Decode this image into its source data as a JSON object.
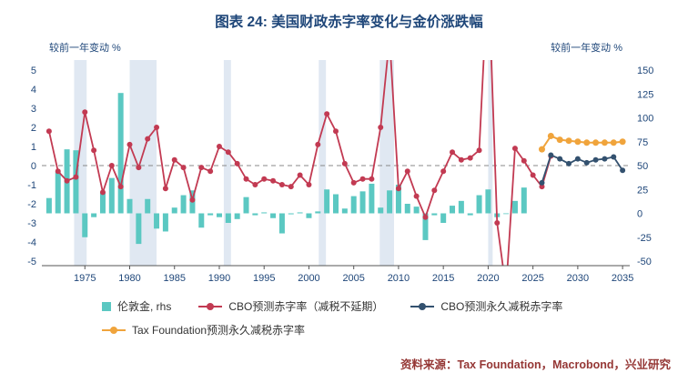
{
  "title": "图表 24: 美国财政赤字率变化与金价涨跌幅",
  "source": "资料来源：Tax Foundation，Macrobond，兴业研究",
  "axis_labels": {
    "left": "较前一年变动 %",
    "right": "较前一年变动 %"
  },
  "colors": {
    "teal": "#5BC8C2",
    "red": "#C23A52",
    "navy": "#33516F",
    "orange": "#F0A43C",
    "band": "#E0E8F2",
    "dashed": "#888888",
    "axis_line": "#555555",
    "axis_text": "#1E4679",
    "title": "#1E4679",
    "source": "#953735"
  },
  "legend": {
    "rows": [
      [
        {
          "marker": "bar",
          "color": "teal",
          "label": "伦敦金, rhs"
        },
        {
          "marker": "line-dot",
          "color": "red",
          "label": "CBO预测赤字率（减税不延期）"
        },
        {
          "marker": "line-dot",
          "color": "navy",
          "label": "CBO预测永久减税赤字率"
        }
      ],
      [
        {
          "marker": "line-dot",
          "color": "orange",
          "label": "Tax Foundation预测永久减税赤字率"
        }
      ]
    ]
  },
  "chart_data": {
    "type": "combo",
    "title": "图表 24: 美国财政赤字率变化与金价涨跌幅",
    "left_axis": {
      "label": "较前一年变动 %",
      "min": -5,
      "max": 5,
      "ticks": [
        5,
        4,
        3,
        2,
        1,
        0,
        -1,
        -2,
        -3,
        -4,
        -5
      ]
    },
    "right_axis": {
      "label": "较前一年变动 %",
      "min": -50,
      "max": 150,
      "ticks": [
        150,
        125,
        100,
        75,
        50,
        25,
        0,
        -25,
        -50
      ]
    },
    "x_axis": {
      "min": 1970,
      "max": 2035,
      "ticks": [
        1975,
        1980,
        1985,
        1990,
        1995,
        2000,
        2005,
        2010,
        2015,
        2020,
        2025,
        2030,
        2035
      ]
    },
    "zero_line": {
      "axis": "left",
      "value": 0,
      "style": "dashed"
    },
    "recession_bands": [
      [
        1973.8,
        1975.2
      ],
      [
        1980.0,
        1983.0
      ],
      [
        1990.5,
        1991.3
      ],
      [
        2001.1,
        2001.9
      ],
      [
        2007.9,
        2009.5
      ],
      [
        2020.0,
        2020.5
      ]
    ],
    "series": [
      {
        "name": "伦敦金, rhs",
        "type": "bar",
        "axis": "right",
        "color": "teal",
        "start_year": 1971,
        "values": [
          16,
          43,
          67,
          66,
          -25,
          -4,
          22,
          37,
          126,
          15,
          -32,
          15,
          -16,
          -19,
          6,
          19,
          24,
          -15,
          -2,
          -4,
          -10,
          -6,
          17,
          -2,
          1,
          -5,
          -21,
          -1,
          1,
          -5,
          2,
          25,
          20,
          5,
          18,
          23,
          31,
          6,
          24,
          30,
          10,
          7,
          -28,
          -2,
          -10,
          8,
          13,
          -2,
          19,
          25,
          -4,
          0,
          13,
          27
        ]
      },
      {
        "name": "CBO预测赤字率（减税不延期）",
        "type": "line",
        "axis": "left",
        "color": "red",
        "width": 1.8,
        "marker_r": 3,
        "start_year": 1971,
        "values": [
          1.8,
          -0.3,
          -0.8,
          -0.6,
          2.8,
          0.8,
          -1.4,
          0,
          -1.1,
          1.1,
          -0.1,
          1.4,
          2,
          -1.2,
          0.3,
          -0.1,
          -1.8,
          -0.1,
          -0.3,
          1,
          0.7,
          0.1,
          -0.7,
          -1,
          -0.7,
          -0.8,
          -1,
          -1.1,
          -0.5,
          -1,
          1.1,
          2.7,
          1.8,
          0.1,
          -0.9,
          -0.7,
          -0.7,
          2,
          6.7,
          -1.2,
          -0.3,
          -1.6,
          -2.7,
          -1.3,
          -0.3,
          0.7,
          0.3,
          0.4,
          0.8,
          10.3,
          -3,
          -6.5,
          0.9,
          0.25,
          -0.5,
          -1.1,
          0.5
        ]
      },
      {
        "name": "CBO预测永久减税赤字率",
        "type": "line",
        "axis": "left",
        "color": "navy",
        "width": 1.8,
        "marker_r": 3,
        "start_year": 2026,
        "values": [
          -0.9,
          0.55,
          0.35,
          0.1,
          0.35,
          0.15,
          0.3,
          0.35,
          0.45,
          -0.25
        ]
      },
      {
        "name": "Tax Foundation预测永久减税赤字率",
        "type": "line",
        "axis": "left",
        "color": "orange",
        "width": 2,
        "marker_r": 3.5,
        "start_year": 2026,
        "values": [
          0.85,
          1.55,
          1.35,
          1.3,
          1.25,
          1.2,
          1.2,
          1.2,
          1.2,
          1.25
        ]
      }
    ]
  }
}
